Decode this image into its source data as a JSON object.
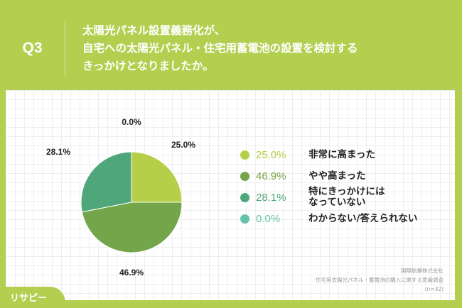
{
  "header": {
    "question": "Q3",
    "title": "太陽光パネル設置義務化が、\n自宅への太陽光パネル・住宅用蓄電池の設置を検討する\nきっかけとなりましたか。"
  },
  "chart_data": {
    "type": "pie",
    "categories": [
      "非常に高まった",
      "やや高まった",
      "特にきっかけには\nなっていない",
      "わからない/答えられない"
    ],
    "values": [
      25.0,
      46.9,
      28.1,
      0.0
    ],
    "data_labels": [
      "25.0%",
      "46.9%",
      "28.1%",
      "0.0%"
    ],
    "colors": [
      "#b5cf49",
      "#73a54a",
      "#4fa67a",
      "#62c3a9"
    ],
    "legend_placement": "right"
  },
  "source": {
    "company": "国際航業株式会社",
    "survey": "住宅用太陽光パネル・蓄電池の購入に関する意識調査",
    "n": "(n=32)"
  },
  "logo": {
    "text": "リサピー"
  }
}
